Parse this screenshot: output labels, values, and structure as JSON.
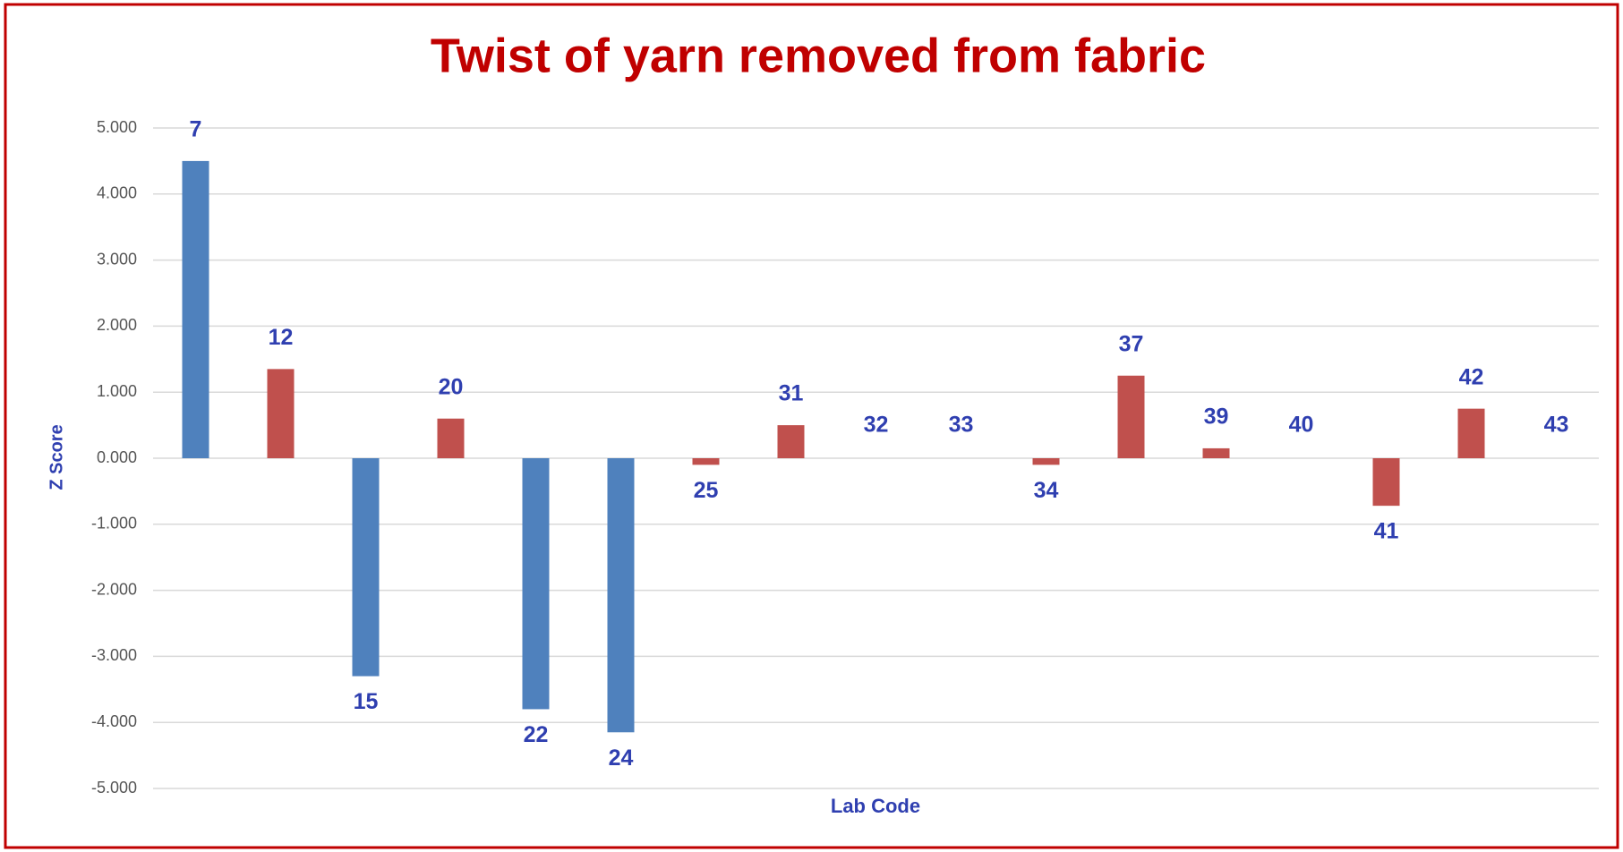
{
  "chart_data": {
    "type": "bar",
    "title": "Twist of yarn removed from fabric",
    "x_label": "Lab Code",
    "y_label": "Z Score",
    "categories": [
      "7",
      "12",
      "15",
      "20",
      "22",
      "24",
      "25",
      "31",
      "32",
      "33",
      "34",
      "37",
      "39",
      "40",
      "41",
      "42",
      "43"
    ],
    "values": [
      4.5,
      1.35,
      -3.3,
      0.6,
      -3.8,
      -4.15,
      -0.1,
      0.5,
      0,
      0,
      -0.1,
      1.25,
      0.15,
      0,
      -0.72,
      0.75,
      0
    ],
    "colors": [
      "#4f81bd",
      "#c0504d",
      "#4f81bd",
      "#c0504d",
      "#4f81bd",
      "#4f81bd",
      "#c0504d",
      "#c0504d",
      "#c0504d",
      "#c0504d",
      "#c0504d",
      "#c0504d",
      "#c0504d",
      "#c0504d",
      "#c0504d",
      "#c0504d",
      "#c0504d"
    ],
    "ylim": [
      -5,
      5
    ],
    "yticks": [
      {
        "value": 5,
        "label": "5.000"
      },
      {
        "value": 4,
        "label": "4.000"
      },
      {
        "value": 3,
        "label": "3.000"
      },
      {
        "value": 2,
        "label": "2.000"
      },
      {
        "value": 1,
        "label": "1.000"
      },
      {
        "value": 0,
        "label": "0.000"
      },
      {
        "value": -1,
        "label": "-1.000"
      },
      {
        "value": -2,
        "label": "-2.000"
      },
      {
        "value": -3,
        "label": "-3.000"
      },
      {
        "value": -4,
        "label": "-4.000"
      },
      {
        "value": -5,
        "label": "-5.000"
      }
    ],
    "grid": true
  }
}
